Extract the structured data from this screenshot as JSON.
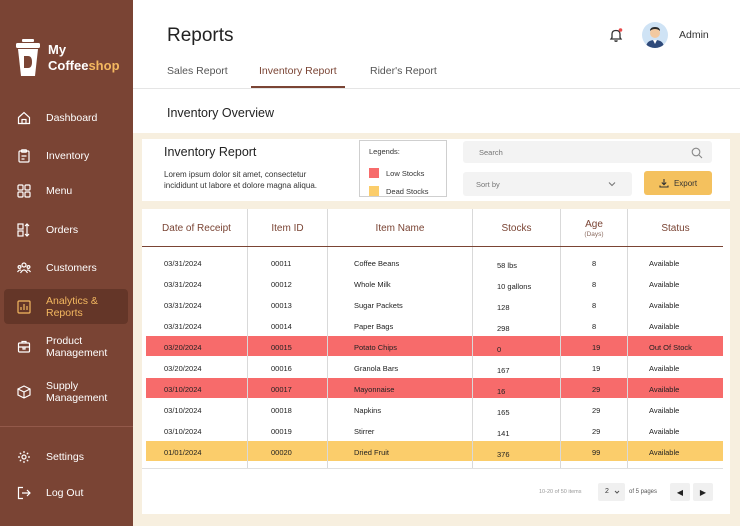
{
  "brand": {
    "line1": "My",
    "line2_a": "Coffee",
    "line2_b": "shop"
  },
  "sidebar": {
    "items": [
      {
        "label": "Dashboard",
        "icon": "home-icon"
      },
      {
        "label": "Inventory",
        "icon": "clipboard-icon"
      },
      {
        "label": "Menu",
        "icon": "grid-icon"
      },
      {
        "label": "Orders",
        "icon": "orders-icon"
      },
      {
        "label": "Customers",
        "icon": "users-icon"
      },
      {
        "label": "Analytics & Reports",
        "icon": "chart-icon"
      },
      {
        "label": "Product Management",
        "icon": "box-icon"
      },
      {
        "label": "Supply Management",
        "icon": "supply-icon"
      }
    ],
    "bottom": [
      {
        "label": "Settings",
        "icon": "gear-icon"
      },
      {
        "label": "Log Out",
        "icon": "logout-icon"
      }
    ]
  },
  "header": {
    "title": "Reports",
    "user": "Admin"
  },
  "tabs": [
    "Sales Report",
    "Inventory Report",
    "Rider's Report"
  ],
  "section_title": "Inventory Overview",
  "report": {
    "title": "Inventory Report",
    "description": "Lorem ipsum dolor sit amet, consectetur incididunt ut labore et dolore magna aliqua."
  },
  "legend": {
    "title": "Legends:",
    "low": "Low Stocks",
    "dead": "Dead Stocks",
    "low_color": "#f76b6b",
    "dead_color": "#fbcd6b"
  },
  "search": {
    "placeholder": "Search"
  },
  "sort": {
    "label": "Sort by"
  },
  "export_label": "Export",
  "table": {
    "headers": {
      "date": "Date of Receipt",
      "id": "Item ID",
      "name": "Item Name",
      "stocks": "Stocks",
      "age": "Age",
      "age_sub": "(Days)",
      "status": "Status"
    },
    "rows": [
      {
        "date": "03/31/2024",
        "id": "00011",
        "name": "Coffee Beans",
        "stocks": "58 lbs",
        "age": "8",
        "status": "Available",
        "flag": ""
      },
      {
        "date": "03/31/2024",
        "id": "00012",
        "name": "Whole Milk",
        "stocks": "10 gallons",
        "age": "8",
        "status": "Available",
        "flag": ""
      },
      {
        "date": "03/31/2024",
        "id": "00013",
        "name": "Sugar Packets",
        "stocks": "128",
        "age": "8",
        "status": "Available",
        "flag": ""
      },
      {
        "date": "03/31/2024",
        "id": "00014",
        "name": "Paper Bags",
        "stocks": "298",
        "age": "8",
        "status": "Available",
        "flag": ""
      },
      {
        "date": "03/20/2024",
        "id": "00015",
        "name": "Potato Chips",
        "stocks": "0",
        "age": "19",
        "status": "Out Of Stock",
        "flag": "low"
      },
      {
        "date": "03/20/2024",
        "id": "00016",
        "name": "Granola Bars",
        "stocks": "167",
        "age": "19",
        "status": "Available",
        "flag": ""
      },
      {
        "date": "03/10/2024",
        "id": "00017",
        "name": "Mayonnaise",
        "stocks": "16",
        "age": "29",
        "status": "Available",
        "flag": "low"
      },
      {
        "date": "03/10/2024",
        "id": "00018",
        "name": "Napkins",
        "stocks": "165",
        "age": "29",
        "status": "Available",
        "flag": ""
      },
      {
        "date": "03/10/2024",
        "id": "00019",
        "name": "Stirrer",
        "stocks": "141",
        "age": "29",
        "status": "Available",
        "flag": ""
      },
      {
        "date": "01/01/2024",
        "id": "00020",
        "name": "Dried Fruit",
        "stocks": "376",
        "age": "99",
        "status": "Available",
        "flag": "dead"
      }
    ]
  },
  "pagination": {
    "info": "10-20 of 50 items",
    "page": "2",
    "of": "of 5 pages",
    "prev": "◀",
    "next": "▶"
  }
}
